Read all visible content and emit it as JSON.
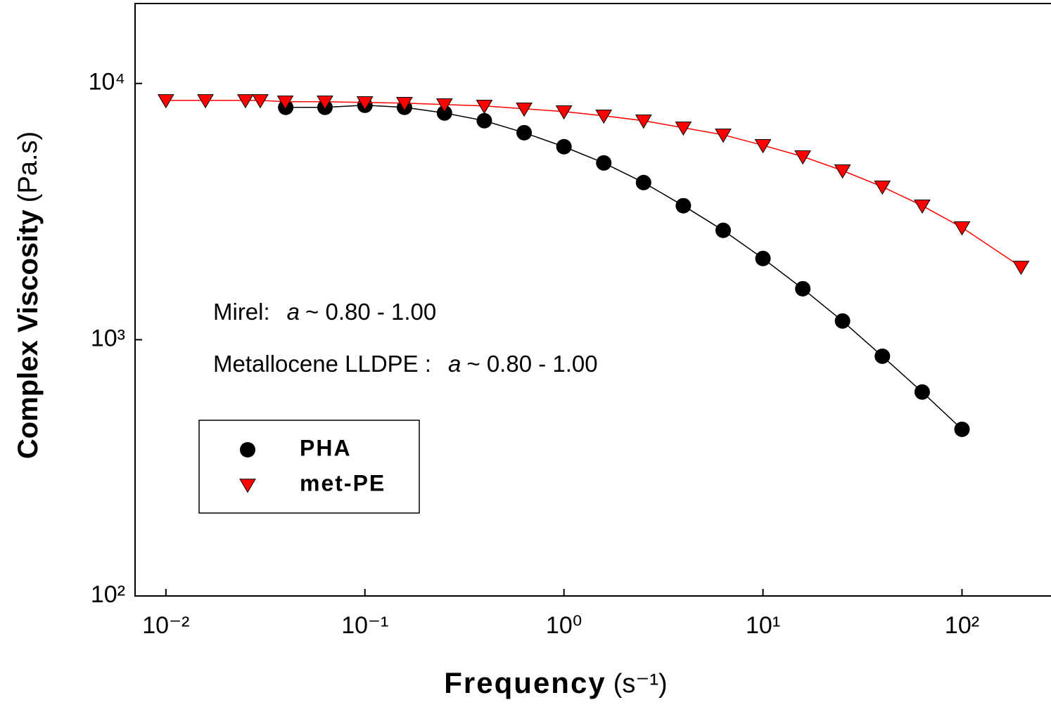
{
  "chart_data": {
    "type": "scatter",
    "x_label": "Frequency",
    "x_unit": "(s⁻¹)",
    "y_label": "Complex Viscosity",
    "y_unit": "(Pa.s)",
    "xscale": "log",
    "yscale": "log",
    "xlim": [
      0.007,
      280
    ],
    "ylim": [
      100,
      20000
    ],
    "xticks": [
      {
        "value": 0.01,
        "label": "10⁻²"
      },
      {
        "value": 0.1,
        "label": "10⁻¹"
      },
      {
        "value": 1,
        "label": "10⁰"
      },
      {
        "value": 10,
        "label": "10¹"
      },
      {
        "value": 100,
        "label": "10²"
      }
    ],
    "yticks": [
      {
        "value": 100,
        "label": "10²"
      },
      {
        "value": 1000,
        "label": "10³"
      },
      {
        "value": 10000,
        "label": "10⁴"
      }
    ],
    "legend": "lower-left",
    "annotations": [
      {
        "label": "Mirel:",
        "var": "a",
        "range": "~ 0.80 - 1.00"
      },
      {
        "label": "Metallocene LLDPE :",
        "var": "a",
        "range": "~ 0.80 - 1.00"
      }
    ],
    "series": [
      {
        "name": "PHA",
        "color": "#000000",
        "marker": "circle",
        "x": [
          0.04,
          0.063,
          0.1,
          0.158,
          0.251,
          0.398,
          0.631,
          1,
          1.585,
          2.512,
          3.98,
          6.31,
          10,
          15.85,
          25.1,
          39.8,
          63.1,
          100
        ],
        "values": [
          8070,
          8070,
          8220,
          8070,
          7670,
          7155,
          6425,
          5665,
          4898,
          4105,
          3334,
          2672,
          2075,
          1581,
          1183,
          862,
          625,
          447
        ]
      },
      {
        "name": "met-PE",
        "color": "#ff0000",
        "marker": "triangle-down",
        "x": [
          0.01,
          0.0158,
          0.0251,
          0.0298,
          0.0398,
          0.063,
          0.1,
          0.158,
          0.251,
          0.398,
          0.631,
          1,
          1.585,
          2.512,
          3.98,
          6.31,
          10,
          15.85,
          25.1,
          39.8,
          63.1,
          100,
          198
        ],
        "values": [
          8590,
          8590,
          8590,
          8590,
          8485,
          8485,
          8430,
          8380,
          8275,
          8170,
          7965,
          7770,
          7480,
          7155,
          6720,
          6305,
          5735,
          5185,
          4570,
          3954,
          3334,
          2740,
          1923
        ]
      }
    ]
  }
}
